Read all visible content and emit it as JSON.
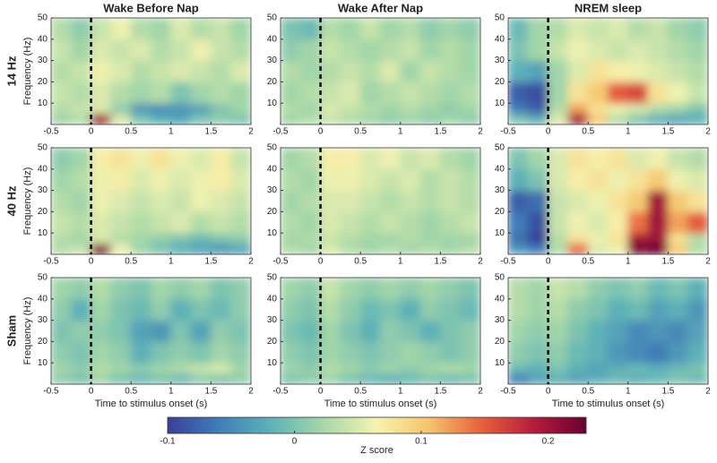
{
  "chart_data": [
    {
      "type": "heatmap",
      "title": "Wake Before Nap",
      "row_label": "14 Hz",
      "ylabel": "Frequency (Hz)",
      "x_edges": [
        -0.5,
        -0.25,
        0,
        0.25,
        0.5,
        0.75,
        1,
        1.25,
        1.5,
        1.75,
        2
      ],
      "y_edges": [
        0,
        5,
        10,
        20,
        30,
        40,
        50
      ],
      "values": [
        [
          0.02,
          0.03,
          0.2,
          0.05,
          0.0,
          -0.02,
          -0.03,
          0.0,
          0.01,
          0.0
        ],
        [
          0.03,
          0.04,
          0.05,
          0.01,
          -0.04,
          -0.05,
          -0.04,
          -0.03,
          0.0,
          0.02
        ],
        [
          0.04,
          0.03,
          0.05,
          0.03,
          0.02,
          0.03,
          0.0,
          0.02,
          0.03,
          0.02
        ],
        [
          0.03,
          0.04,
          0.06,
          0.05,
          0.03,
          0.04,
          0.05,
          0.04,
          0.03,
          0.05
        ],
        [
          0.04,
          0.02,
          0.05,
          0.04,
          0.05,
          0.03,
          0.04,
          0.06,
          0.04,
          0.03
        ],
        [
          0.03,
          0.01,
          0.04,
          0.06,
          0.03,
          0.02,
          0.05,
          0.03,
          0.04,
          0.02
        ]
      ],
      "xlim": [
        -0.5,
        2
      ],
      "ylim": [
        0,
        50
      ],
      "xticks": [
        -0.5,
        0,
        0.5,
        1,
        1.5,
        2
      ],
      "yticks": [
        10,
        20,
        30,
        40,
        50
      ],
      "onset": 0
    },
    {
      "type": "heatmap",
      "title": "Wake After Nap",
      "x_edges": [
        -0.5,
        -0.25,
        0,
        0.25,
        0.5,
        0.75,
        1,
        1.25,
        1.5,
        1.75,
        2
      ],
      "y_edges": [
        0,
        5,
        10,
        20,
        30,
        40,
        50
      ],
      "values": [
        [
          0.02,
          0.03,
          0.04,
          0.03,
          0.02,
          0.01,
          0.02,
          0.01,
          0.02,
          0.01
        ],
        [
          0.03,
          0.02,
          0.05,
          0.04,
          0.03,
          0.02,
          0.03,
          0.02,
          0.01,
          0.02
        ],
        [
          0.02,
          0.03,
          0.04,
          0.05,
          0.02,
          0.03,
          0.04,
          0.03,
          0.02,
          0.03
        ],
        [
          0.03,
          0.02,
          0.03,
          0.04,
          0.03,
          0.05,
          0.02,
          0.04,
          0.03,
          0.02
        ],
        [
          0.01,
          0.02,
          0.04,
          0.03,
          0.02,
          0.03,
          0.04,
          0.02,
          0.03,
          0.02
        ],
        [
          0.0,
          -0.01,
          0.03,
          0.02,
          0.04,
          0.02,
          0.03,
          0.01,
          0.02,
          0.01
        ]
      ],
      "xlim": [
        -0.5,
        2
      ],
      "ylim": [
        0,
        50
      ],
      "xticks": [
        -0.5,
        0,
        0.5,
        1,
        1.5,
        2
      ],
      "yticks": [
        10,
        20,
        30,
        40,
        50
      ],
      "onset": 0
    },
    {
      "type": "heatmap",
      "title": "NREM sleep",
      "x_edges": [
        -0.5,
        -0.25,
        0,
        0.25,
        0.5,
        0.75,
        1,
        1.25,
        1.5,
        1.75,
        2
      ],
      "y_edges": [
        0,
        5,
        10,
        20,
        30,
        40,
        50
      ],
      "values": [
        [
          0.0,
          -0.02,
          0.05,
          0.2,
          0.1,
          0.03,
          0.0,
          -0.02,
          -0.03,
          -0.02
        ],
        [
          -0.06,
          -0.08,
          0.03,
          0.12,
          0.08,
          0.06,
          0.05,
          0.03,
          0.02,
          0.0
        ],
        [
          -0.08,
          -0.09,
          0.02,
          0.08,
          0.1,
          0.15,
          0.16,
          0.08,
          0.06,
          0.04
        ],
        [
          -0.02,
          -0.03,
          0.02,
          0.05,
          0.08,
          0.07,
          0.06,
          0.05,
          0.04,
          0.03
        ],
        [
          0.0,
          0.02,
          0.04,
          0.06,
          0.05,
          0.04,
          0.05,
          0.04,
          0.03,
          0.02
        ],
        [
          -0.01,
          0.02,
          0.03,
          0.05,
          0.04,
          0.05,
          0.03,
          0.04,
          0.02,
          0.01
        ]
      ],
      "xlim": [
        -0.5,
        2
      ],
      "ylim": [
        0,
        50
      ],
      "xticks": [
        -0.5,
        0,
        0.5,
        1,
        1.5,
        2
      ],
      "yticks": [
        10,
        20,
        30,
        40,
        50
      ],
      "onset": 0
    },
    {
      "type": "heatmap",
      "row_label": "40 Hz",
      "ylabel": "Frequency (Hz)",
      "x_edges": [
        -0.5,
        -0.25,
        0,
        0.25,
        0.5,
        0.75,
        1,
        1.25,
        1.5,
        1.75,
        2
      ],
      "y_edges": [
        0,
        5,
        10,
        20,
        30,
        40,
        50
      ],
      "values": [
        [
          0.03,
          0.04,
          0.22,
          0.06,
          0.02,
          0.0,
          -0.02,
          -0.03,
          -0.04,
          -0.03
        ],
        [
          0.03,
          0.02,
          0.05,
          0.03,
          0.02,
          0.01,
          0.0,
          -0.01,
          0.0,
          0.01
        ],
        [
          0.04,
          0.03,
          0.05,
          0.04,
          0.03,
          0.04,
          0.05,
          0.03,
          0.04,
          0.03
        ],
        [
          0.03,
          0.02,
          0.06,
          0.05,
          0.04,
          0.05,
          0.04,
          0.06,
          0.05,
          0.04
        ],
        [
          0.02,
          0.03,
          0.06,
          0.07,
          0.05,
          0.06,
          0.05,
          0.06,
          0.07,
          0.05
        ],
        [
          0.01,
          0.02,
          0.07,
          0.08,
          0.06,
          0.08,
          0.06,
          0.05,
          0.07,
          0.04
        ]
      ],
      "xlim": [
        -0.5,
        2
      ],
      "ylim": [
        0,
        50
      ],
      "xticks": [
        -0.5,
        0,
        0.5,
        1,
        1.5,
        2
      ],
      "yticks": [
        10,
        20,
        30,
        40,
        50
      ],
      "onset": 0
    },
    {
      "type": "heatmap",
      "x_edges": [
        -0.5,
        -0.25,
        0,
        0.25,
        0.5,
        0.75,
        1,
        1.25,
        1.5,
        1.75,
        2
      ],
      "y_edges": [
        0,
        5,
        10,
        20,
        30,
        40,
        50
      ],
      "values": [
        [
          0.03,
          0.02,
          0.05,
          0.03,
          0.02,
          0.03,
          0.02,
          0.03,
          0.02,
          0.03
        ],
        [
          0.02,
          0.03,
          0.04,
          0.03,
          0.02,
          0.02,
          0.03,
          0.02,
          0.02,
          0.02
        ],
        [
          0.03,
          0.02,
          0.05,
          0.04,
          0.03,
          0.04,
          0.03,
          0.02,
          0.03,
          0.04
        ],
        [
          0.02,
          0.03,
          0.05,
          0.05,
          0.04,
          0.03,
          0.04,
          0.03,
          0.04,
          0.03
        ],
        [
          0.03,
          0.02,
          0.06,
          0.06,
          0.05,
          0.04,
          0.05,
          0.03,
          0.04,
          0.03
        ],
        [
          0.02,
          0.03,
          0.07,
          0.07,
          0.05,
          0.06,
          0.04,
          0.05,
          0.03,
          0.02
        ]
      ],
      "xlim": [
        -0.5,
        2
      ],
      "ylim": [
        0,
        50
      ],
      "xticks": [
        -0.5,
        0,
        0.5,
        1,
        1.5,
        2
      ],
      "yticks": [
        10,
        20,
        30,
        40,
        50
      ],
      "onset": 0
    },
    {
      "type": "heatmap",
      "x_edges": [
        -0.5,
        -0.25,
        0,
        0.25,
        0.5,
        0.75,
        1,
        1.25,
        1.5,
        1.75,
        2
      ],
      "y_edges": [
        0,
        5,
        10,
        20,
        30,
        40,
        50
      ],
      "values": [
        [
          -0.04,
          -0.06,
          0.03,
          0.15,
          0.05,
          0.06,
          0.22,
          0.24,
          0.1,
          0.03
        ],
        [
          -0.07,
          -0.1,
          0.03,
          0.08,
          0.06,
          0.08,
          0.2,
          0.2,
          0.08,
          0.03
        ],
        [
          -0.06,
          -0.09,
          0.04,
          0.06,
          0.05,
          0.07,
          0.14,
          0.2,
          0.12,
          0.15
        ],
        [
          -0.08,
          -0.07,
          0.04,
          0.05,
          0.06,
          0.08,
          0.1,
          0.2,
          0.1,
          0.08
        ],
        [
          -0.02,
          0.0,
          0.05,
          0.07,
          0.08,
          0.06,
          0.08,
          0.1,
          0.06,
          0.05
        ],
        [
          0.0,
          0.02,
          0.05,
          0.08,
          0.07,
          0.08,
          0.05,
          0.06,
          0.04,
          0.03
        ]
      ],
      "xlim": [
        -0.5,
        2
      ],
      "ylim": [
        0,
        50
      ],
      "xticks": [
        -0.5,
        0,
        0.5,
        1,
        1.5,
        2
      ],
      "yticks": [
        10,
        20,
        30,
        40,
        50
      ],
      "onset": 0
    },
    {
      "type": "heatmap",
      "row_label": "Sham",
      "ylabel": "Frequency (Hz)",
      "xlabel": "Time to stimulus onset (s)",
      "x_edges": [
        -0.5,
        -0.25,
        0,
        0.25,
        0.5,
        0.75,
        1,
        1.25,
        1.5,
        1.75,
        2
      ],
      "y_edges": [
        0,
        5,
        10,
        20,
        30,
        40,
        50
      ],
      "values": [
        [
          0.01,
          0.0,
          0.02,
          0.0,
          -0.01,
          0.0,
          -0.01,
          0.01,
          0.0,
          0.01
        ],
        [
          0.02,
          0.01,
          0.03,
          0.02,
          0.01,
          0.02,
          0.03,
          0.04,
          0.05,
          0.02
        ],
        [
          0.01,
          0.0,
          0.02,
          0.01,
          -0.02,
          0.0,
          0.01,
          0.0,
          0.02,
          0.01
        ],
        [
          0.0,
          0.01,
          0.01,
          0.0,
          -0.03,
          -0.04,
          0.0,
          -0.03,
          0.01,
          0.0
        ],
        [
          0.01,
          -0.02,
          0.02,
          0.0,
          -0.01,
          0.01,
          -0.02,
          0.0,
          -0.01,
          0.01
        ],
        [
          0.02,
          0.01,
          0.03,
          0.01,
          0.0,
          0.02,
          0.01,
          0.02,
          0.0,
          0.01
        ]
      ],
      "xlim": [
        -0.5,
        2
      ],
      "ylim": [
        0,
        50
      ],
      "xticks": [
        -0.5,
        0,
        0.5,
        1,
        1.5,
        2
      ],
      "yticks": [
        10,
        20,
        30,
        40,
        50
      ],
      "onset": 0
    },
    {
      "type": "heatmap",
      "xlabel": "Time to stimulus onset (s)",
      "x_edges": [
        -0.5,
        -0.25,
        0,
        0.25,
        0.5,
        0.75,
        1,
        1.25,
        1.5,
        1.75,
        2
      ],
      "y_edges": [
        0,
        5,
        10,
        20,
        30,
        40,
        50
      ],
      "values": [
        [
          0.0,
          0.01,
          0.02,
          0.0,
          -0.01,
          -0.02,
          -0.01,
          0.0,
          -0.01,
          0.0
        ],
        [
          0.02,
          0.01,
          0.03,
          0.02,
          0.01,
          0.02,
          0.01,
          0.02,
          0.03,
          0.02
        ],
        [
          0.01,
          0.0,
          0.02,
          0.01,
          0.0,
          0.01,
          0.02,
          0.01,
          0.0,
          0.01
        ],
        [
          0.0,
          -0.01,
          0.02,
          0.0,
          -0.02,
          0.01,
          0.0,
          -0.02,
          0.0,
          0.01
        ],
        [
          0.01,
          0.0,
          0.03,
          0.01,
          -0.01,
          0.0,
          -0.02,
          0.01,
          0.0,
          -0.01
        ],
        [
          0.02,
          0.01,
          0.04,
          0.02,
          0.01,
          0.02,
          0.01,
          0.02,
          0.01,
          0.0
        ]
      ],
      "xlim": [
        -0.5,
        2
      ],
      "ylim": [
        0,
        50
      ],
      "xticks": [
        -0.5,
        0,
        0.5,
        1,
        1.5,
        2
      ],
      "yticks": [
        10,
        20,
        30,
        40,
        50
      ],
      "onset": 0
    },
    {
      "type": "heatmap",
      "xlabel": "Time to stimulus onset (s)",
      "x_edges": [
        -0.5,
        -0.25,
        0,
        0.25,
        0.5,
        0.75,
        1,
        1.25,
        1.5,
        1.75,
        2
      ],
      "y_edges": [
        0,
        5,
        10,
        20,
        30,
        40,
        50
      ],
      "values": [
        [
          -0.06,
          -0.03,
          -0.02,
          -0.03,
          -0.02,
          -0.01,
          -0.02,
          -0.01,
          0.0,
          -0.01
        ],
        [
          -0.01,
          -0.02,
          0.0,
          -0.02,
          -0.03,
          -0.02,
          -0.01,
          -0.02,
          -0.01,
          0.0
        ],
        [
          0.01,
          0.0,
          0.01,
          -0.01,
          -0.02,
          -0.04,
          -0.05,
          -0.06,
          -0.04,
          -0.02
        ],
        [
          0.02,
          0.01,
          0.02,
          0.0,
          -0.02,
          -0.03,
          -0.05,
          -0.04,
          -0.05,
          -0.03
        ],
        [
          0.03,
          0.02,
          0.03,
          0.01,
          0.0,
          -0.02,
          -0.01,
          -0.03,
          -0.02,
          -0.04
        ],
        [
          0.03,
          0.02,
          0.04,
          0.03,
          0.01,
          0.0,
          0.01,
          -0.01,
          0.0,
          -0.02
        ]
      ],
      "xlim": [
        -0.5,
        2
      ],
      "ylim": [
        0,
        50
      ],
      "xticks": [
        -0.5,
        0,
        0.5,
        1,
        1.5,
        2
      ],
      "yticks": [
        10,
        20,
        30,
        40,
        50
      ],
      "onset": 0
    }
  ],
  "colorbar": {
    "type": "colorbar",
    "label": "Z score",
    "lim": [
      -0.1,
      0.23
    ],
    "ticks": [
      -0.1,
      0,
      0.1,
      0.2
    ],
    "colors": [
      "#3a3f9a",
      "#3f7fb8",
      "#5fb3b8",
      "#a8d8a8",
      "#f6f3b0",
      "#f5c36b",
      "#e8603c",
      "#b51c3c",
      "#6a0032"
    ]
  }
}
